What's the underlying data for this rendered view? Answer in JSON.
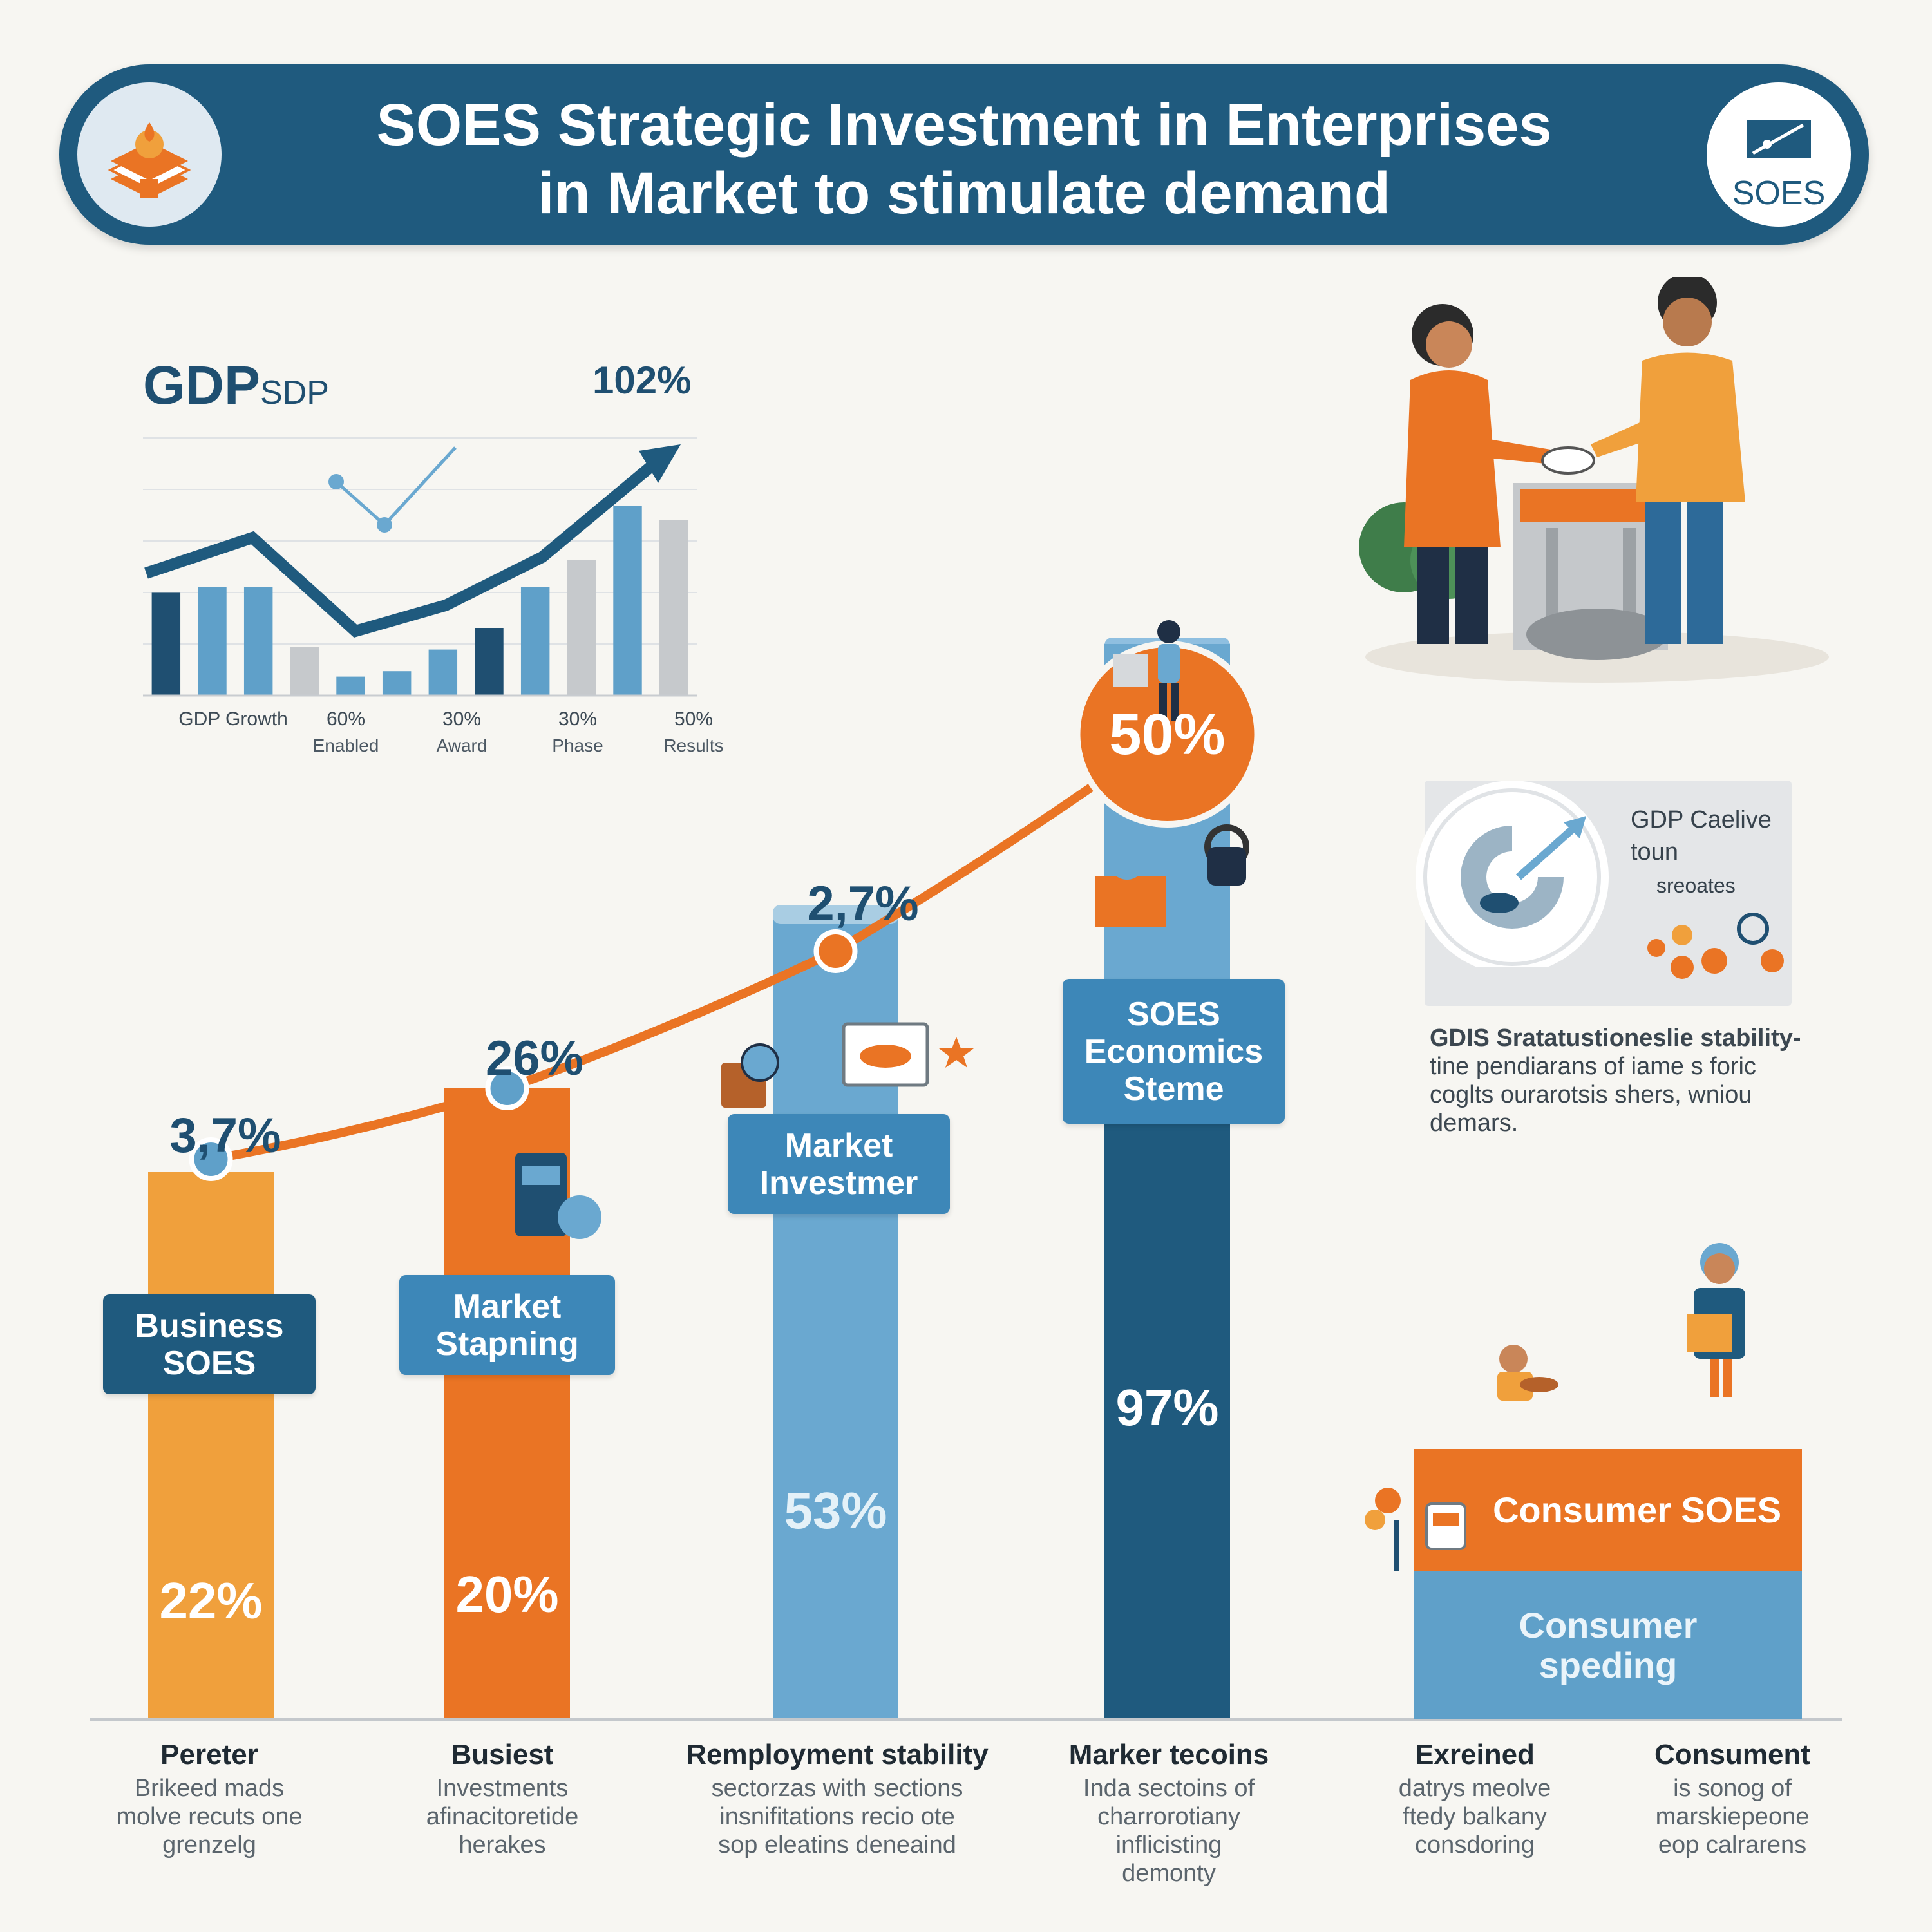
{
  "header": {
    "title_line1": "SOES Strategic Investment in Enterprises",
    "title_line2": "in Market to stimulate demand",
    "logo_text": "SOES"
  },
  "mini_chart": {
    "title": "GDP",
    "title_suffix": "SDP",
    "peak_label": "102%",
    "tick_labels": [
      "GDP Growth",
      "60%",
      "30%",
      "30%",
      "50%"
    ],
    "tick_sublabels": [
      "",
      "Enabled",
      "Award",
      "Phase",
      "Results"
    ],
    "bars": [
      0.38,
      0.4,
      0.4,
      0.18,
      0.07,
      0.09,
      0.17,
      0.25,
      0.4,
      0.5,
      0.7,
      0.65
    ],
    "bar_colors": [
      "#1f4f71",
      "#5fa0c9",
      "#5fa0c9",
      "#c6c9cc",
      "#5fa0c9",
      "#5fa0c9",
      "#5fa0c9",
      "#1f4f71",
      "#5fa0c9",
      "#c6c9cc",
      "#5fa0c9",
      "#c6c9cc"
    ]
  },
  "chart_data": {
    "type": "bar",
    "categories": [
      "Business SOES",
      "Market Stapning",
      "Market Investmer",
      "SOES Economics Steme",
      "Consumer SOES"
    ],
    "series": [
      {
        "name": "",
        "values": [
          22,
          20,
          53,
          97,
          null
        ]
      }
    ],
    "line_values": [
      3.7,
      26,
      2.7,
      50
    ],
    "top_labels": [
      "3,7%",
      "26%",
      "2,7%",
      "50%"
    ],
    "bar_value_labels": [
      "22%",
      "20%",
      "53%",
      "97%"
    ],
    "bar_colors": [
      "#f0a03c",
      "#ea7424",
      "#6aa8d0",
      "#1f5a7e"
    ],
    "line_color": "#ea7424"
  },
  "columns": [
    {
      "title": "Pereter",
      "desc": [
        "Brikeed mads",
        "molve recuts one",
        "grenzelg"
      ]
    },
    {
      "title": "Busiest",
      "desc": [
        "Investments",
        "afinacitoretide",
        "herakes"
      ]
    },
    {
      "title": "Remployment stability",
      "desc": [
        "sectorzas with sections",
        "insnifitations recio ote",
        "sop eleatins deneaind"
      ]
    },
    {
      "title": "Marker tecoins",
      "desc": [
        "Inda sectoins of",
        "charrorotiany",
        "inflicisting",
        "demonty"
      ]
    },
    {
      "title": "Exreined",
      "desc": [
        "datrys meolve",
        "ftedy balkany",
        "consdoring"
      ]
    },
    {
      "title": "Consument",
      "desc": [
        "is sonog of",
        "marskiepeone",
        "eop calrarens"
      ]
    }
  ],
  "consumer_box": {
    "top_label": "Consumer SOES",
    "bottom_label": "Consumer speding"
  },
  "side_panel": {
    "title_line1": "GDP Caelive",
    "title_line2": "toun",
    "title_line3": "sreoates",
    "desc": [
      "GDIS Sratatustioneslie stability-",
      "tine pendiarans of iame s foric",
      "coglts ourarotsis shers, wniou",
      "demars."
    ]
  }
}
